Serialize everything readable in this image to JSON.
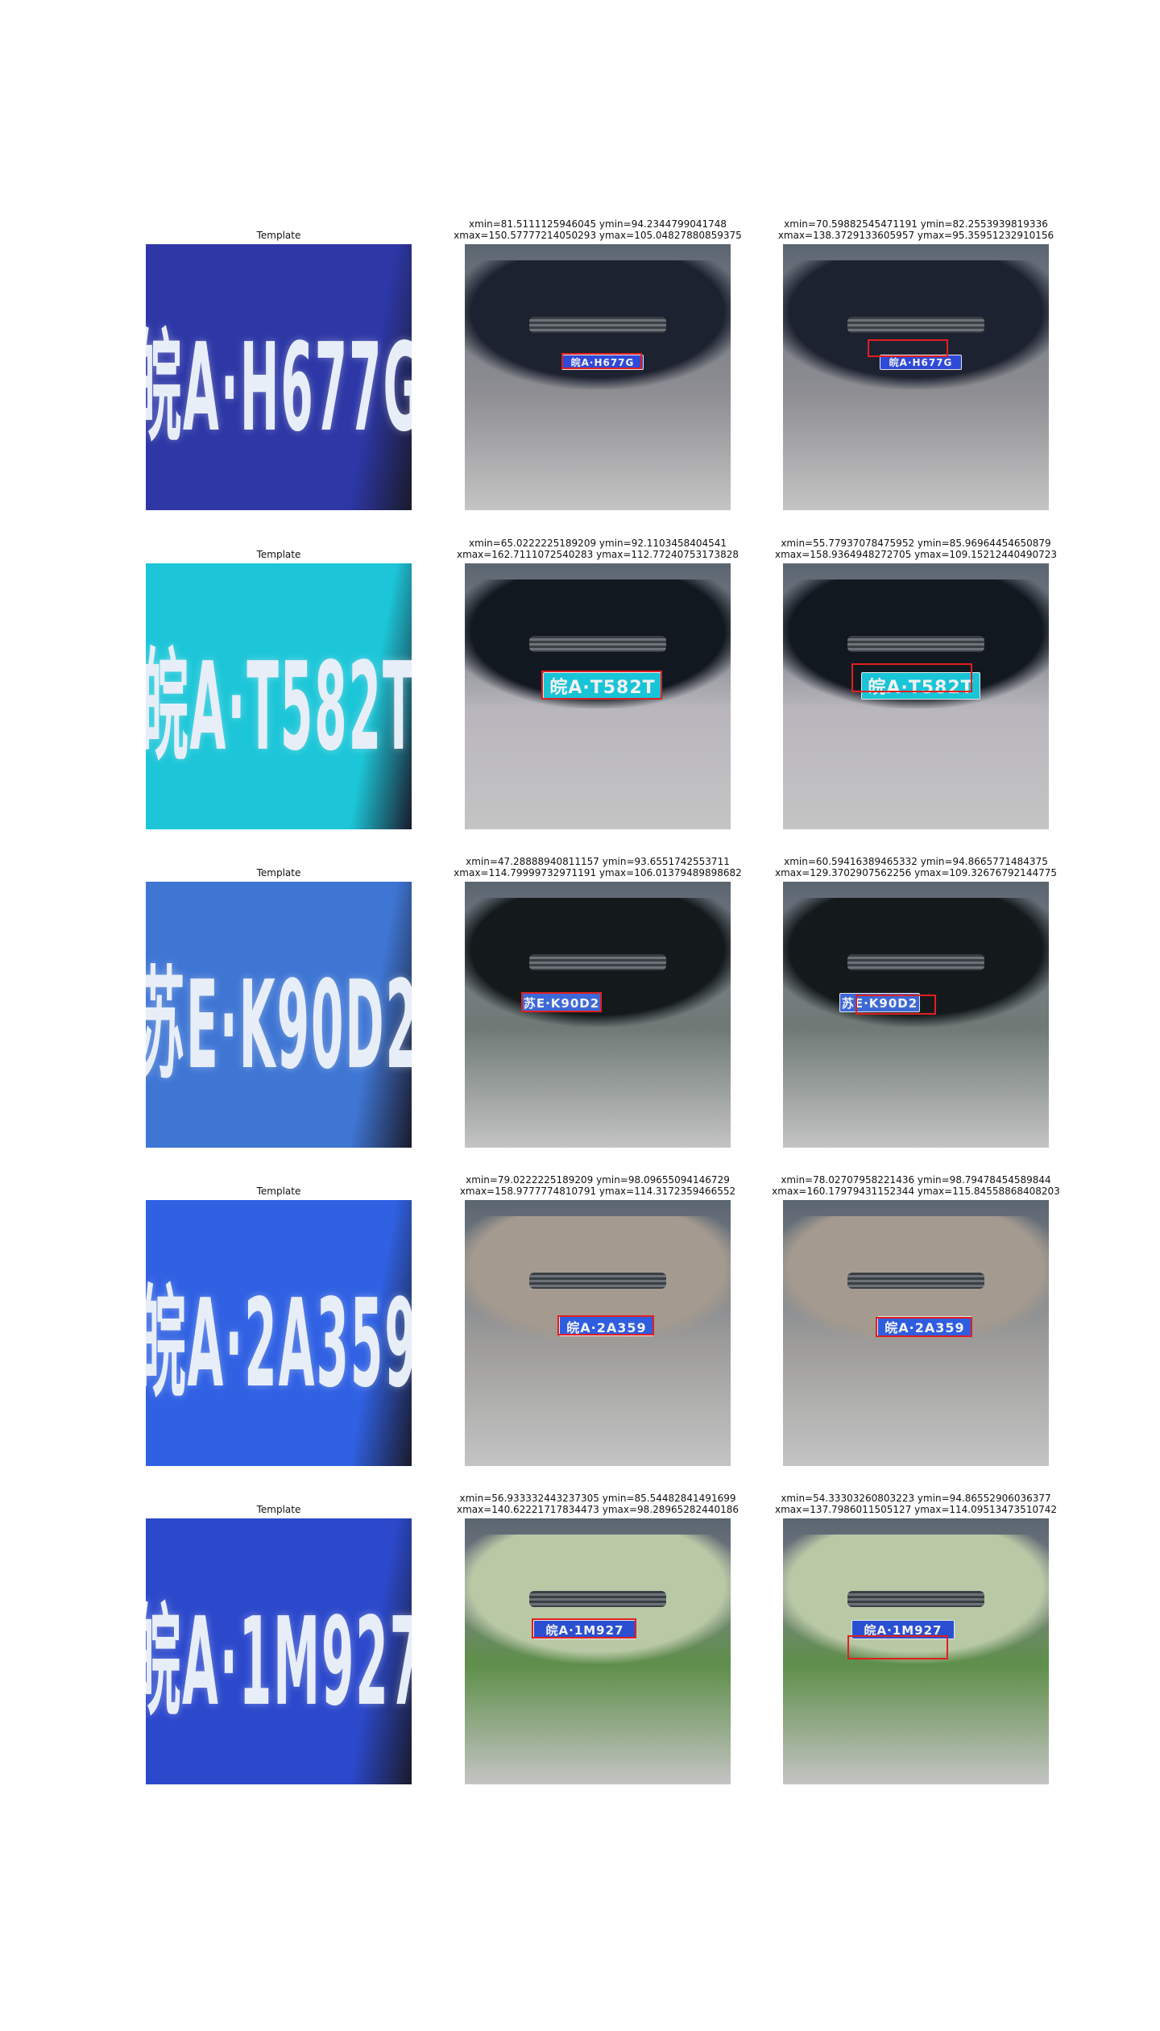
{
  "rows": [
    {
      "template_title": "Template",
      "template_plate": "皖A·H677G",
      "gt": {
        "line1": "xmin=81.5111125946045 ymin=94.2344799041748",
        "line2": "xmax=150.57777214050293 ymax=105.04827880859375"
      },
      "pred": {
        "line1": "xmin=70.59882545471191 ymin=82.2553939819336",
        "line2": "xmax=138.3729133605957 ymax=95.35951232910156"
      },
      "scene_plate": "皖A·H677G",
      "colors": {
        "plate": "#2f49d8",
        "car": "#1d2230",
        "ground": "#8d8d92",
        "template_bg": "#2d37a6"
      }
    },
    {
      "template_title": "Template",
      "template_plate": "皖A·T582T",
      "gt": {
        "line1": "xmin=65.0222225189209 ymin=92.1103458404541",
        "line2": "xmax=162.7111072540283 ymax=112.77240753173828"
      },
      "pred": {
        "line1": "xmin=55.77937078475952 ymin=85.96964454650879",
        "line2": "xmax=158.9364948272705 ymax=109.15212440490723"
      },
      "scene_plate": "皖A·T582T",
      "colors": {
        "plate": "#18c4d6",
        "car": "#121820",
        "ground": "#b9b6bd",
        "template_bg": "#1cc6d8"
      }
    },
    {
      "template_title": "Template",
      "template_plate": "苏E·K90D2",
      "gt": {
        "line1": "xmin=47.28888940811157 ymin=93.6551742553711",
        "line2": "xmax=114.79999732971191 ymax=106.01379489898682"
      },
      "pred": {
        "line1": "xmin=60.59416389465332 ymin=94.8665771484375",
        "line2": "xmax=129.3702907562256 ymax=109.32676792144775"
      },
      "scene_plate": "苏E·K90D2",
      "colors": {
        "plate": "#3d68d8",
        "car": "#141a1c",
        "ground": "#6f7a76",
        "template_bg": "#3f76d4"
      }
    },
    {
      "template_title": "Template",
      "template_plate": "皖A·2A359",
      "gt": {
        "line1": "xmin=79.0222225189209 ymin=98.09655094146729",
        "line2": "xmax=158.9777774810791 ymax=114.3172359466552"
      },
      "pred": {
        "line1": "xmin=78.02707958221436 ymin=98.79478454589844",
        "line2": "xmax=160.17979431152344 ymax=115.84558868408203"
      },
      "scene_plate": "皖A·2A359",
      "colors": {
        "plate": "#2f5de0",
        "car": "#a49a8f",
        "ground": "#9e9d9b",
        "template_bg": "#3061e3"
      }
    },
    {
      "template_title": "Template",
      "template_plate": "皖A·1M927",
      "gt": {
        "line1": "xmin=56.933332443237305 ymin=85.54482841491699",
        "line2": "xmax=140.62221717834473 ymax=98.28965282440186"
      },
      "pred": {
        "line1": "xmin=54.33303260803223 ymin=94.86552906036377",
        "line2": "xmax=137.7986011505127 ymax=114.09513473510742"
      },
      "scene_plate": "皖A·1M927",
      "colors": {
        "plate": "#2a4fd2",
        "car": "#b9c9a6",
        "ground": "#5f8f4a",
        "template_bg": "#2c49cc"
      }
    }
  ]
}
